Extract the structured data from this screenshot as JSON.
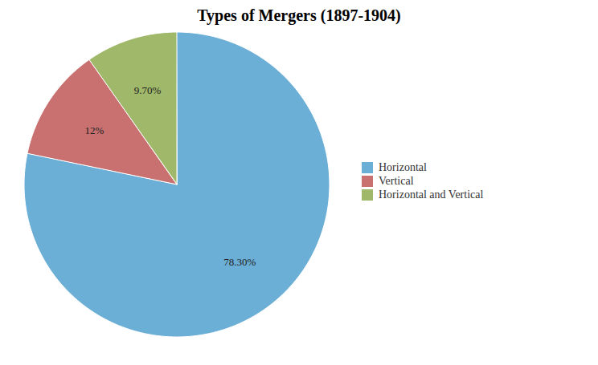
{
  "chart_data": {
    "type": "pie",
    "title": "Types of Mergers (1897-1904)",
    "categories": [
      "Horizontal",
      "Vertical",
      "Horizontal and Vertical"
    ],
    "values": [
      78.3,
      12.0,
      9.7
    ],
    "value_labels": [
      "78.30%",
      "12%",
      "9.70%"
    ],
    "colors": [
      "#6baed6",
      "#c97070",
      "#a0b86a"
    ],
    "data_labels": true,
    "legend": "right"
  }
}
